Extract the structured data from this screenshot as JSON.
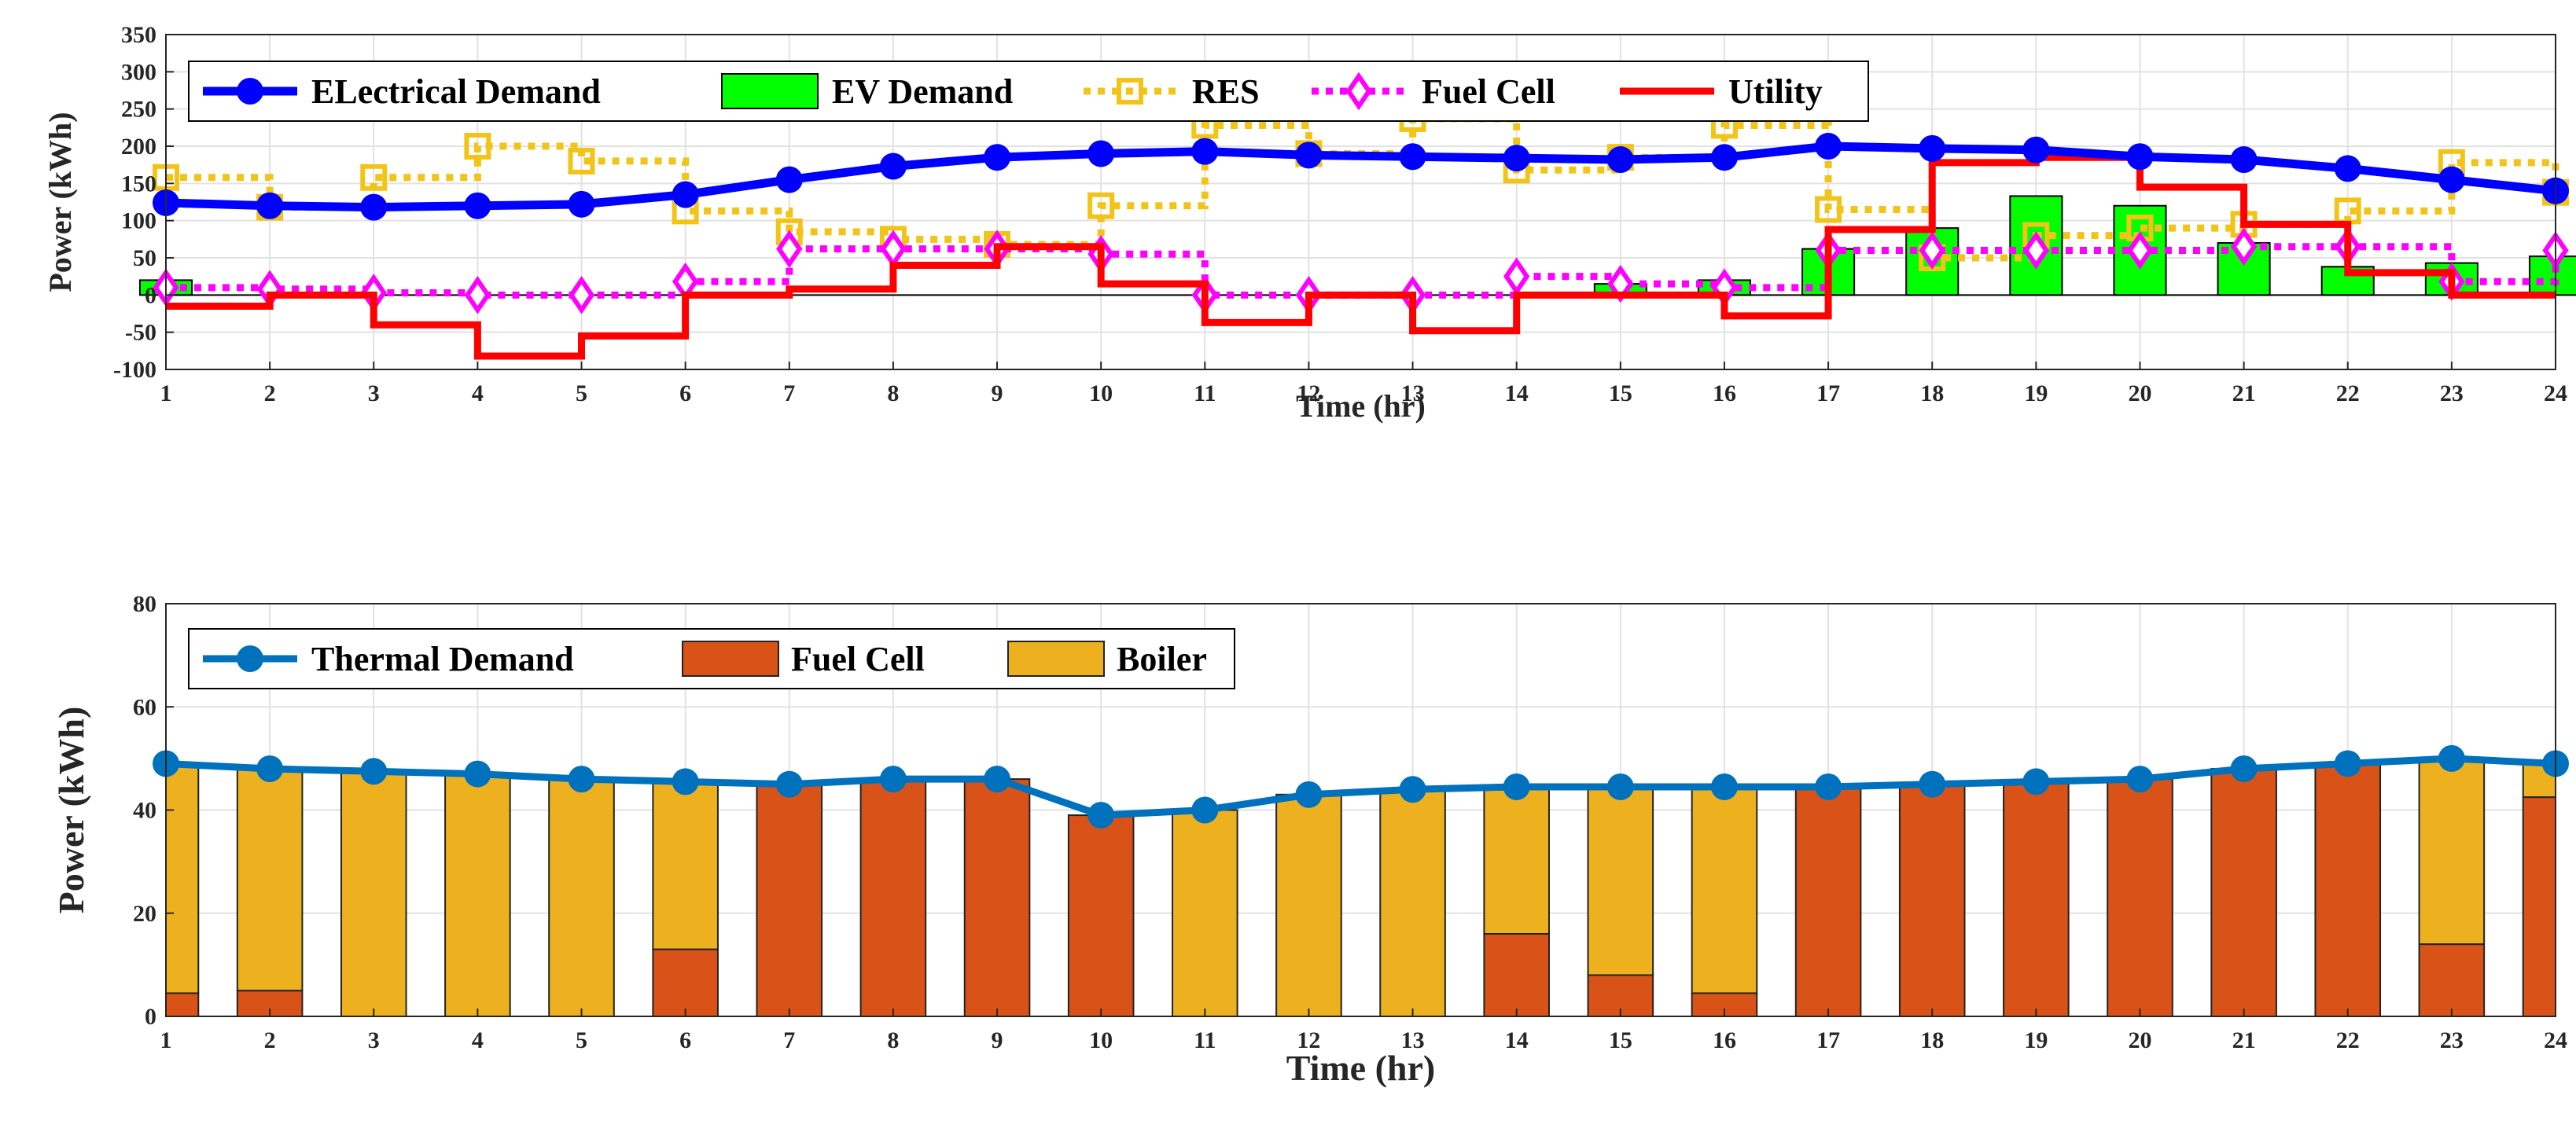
{
  "chart_data": [
    {
      "type": "line",
      "xlabel": "Time (hr)",
      "ylabel": "Power (kWh)",
      "xlim": [
        1,
        24
      ],
      "ylim": [
        -100,
        350
      ],
      "x_ticks": [
        1,
        2,
        3,
        4,
        5,
        6,
        7,
        8,
        9,
        10,
        11,
        12,
        13,
        14,
        15,
        16,
        17,
        18,
        19,
        20,
        21,
        22,
        23,
        24
      ],
      "y_ticks": [
        -100,
        -50,
        0,
        50,
        100,
        150,
        200,
        250,
        300,
        350
      ],
      "grid": true,
      "legend": "top",
      "x": [
        1,
        2,
        3,
        4,
        5,
        6,
        7,
        8,
        9,
        10,
        11,
        12,
        13,
        14,
        15,
        16,
        17,
        18,
        19,
        20,
        21,
        22,
        23,
        24
      ],
      "series": [
        {
          "name": "ELectrical Demand",
          "kind": "line",
          "color": "#0000ff",
          "values": [
            124,
            120,
            118,
            120,
            122,
            135,
            155,
            173,
            185,
            190,
            193,
            188,
            186,
            184,
            182,
            185,
            200,
            197,
            195,
            186,
            182,
            170,
            155,
            140
          ]
        },
        {
          "name": "EV Demand",
          "kind": "bar",
          "color": "#00ff00",
          "values": [
            20,
            0,
            0,
            0,
            0,
            0,
            0,
            0,
            0,
            0,
            0,
            0,
            0,
            0,
            15,
            20,
            62,
            90,
            133,
            120,
            70,
            38,
            43,
            52
          ]
        },
        {
          "name": "RES",
          "kind": "dotted-step",
          "color": "#f2c417",
          "values": [
            158,
            118,
            158,
            200,
            180,
            113,
            85,
            75,
            68,
            120,
            228,
            190,
            237,
            168,
            185,
            228,
            115,
            50,
            80,
            90,
            95,
            113,
            178,
            138
          ]
        },
        {
          "name": "Fuel Cell",
          "kind": "dotted-step",
          "color": "#ff00ff",
          "values": [
            10,
            8,
            3,
            0,
            0,
            18,
            62,
            62,
            62,
            55,
            0,
            0,
            0,
            25,
            15,
            10,
            60,
            60,
            60,
            60,
            65,
            65,
            18,
            60
          ]
        },
        {
          "name": "Utility",
          "kind": "step",
          "color": "#ff0000",
          "values": [
            -15,
            0,
            -40,
            -82,
            -55,
            0,
            8,
            40,
            65,
            15,
            -37,
            0,
            -48,
            0,
            0,
            -28,
            88,
            178,
            185,
            145,
            95,
            30,
            0,
            0
          ]
        }
      ]
    },
    {
      "type": "bar",
      "stacked": true,
      "xlabel": "Time (hr)",
      "ylabel": "Power (kWh)",
      "xlim": [
        1,
        24
      ],
      "ylim": [
        0,
        80
      ],
      "x_ticks": [
        1,
        2,
        3,
        4,
        5,
        6,
        7,
        8,
        9,
        10,
        11,
        12,
        13,
        14,
        15,
        16,
        17,
        18,
        19,
        20,
        21,
        22,
        23,
        24
      ],
      "y_ticks": [
        0,
        20,
        40,
        60,
        80
      ],
      "grid": true,
      "legend": "top-left",
      "x": [
        1,
        2,
        3,
        4,
        5,
        6,
        7,
        8,
        9,
        10,
        11,
        12,
        13,
        14,
        15,
        16,
        17,
        18,
        19,
        20,
        21,
        22,
        23,
        24
      ],
      "series": [
        {
          "name": "Thermal Demand",
          "kind": "line",
          "color": "#0072bd",
          "values": [
            49,
            48,
            47.5,
            47,
            46,
            45.5,
            45,
            46,
            46,
            39,
            40,
            43,
            44,
            44.5,
            44.5,
            44.5,
            44.5,
            45,
            45.5,
            46,
            48,
            49,
            50,
            49
          ]
        },
        {
          "name": "Fuel Cell",
          "kind": "bar",
          "color": "#d95319",
          "values": [
            4.5,
            5,
            0,
            0,
            0,
            13,
            45,
            46,
            46,
            39,
            0,
            0,
            0,
            16,
            8,
            4.5,
            44.5,
            45,
            45.5,
            46,
            48,
            49,
            14,
            42.5
          ]
        },
        {
          "name": "Boiler",
          "kind": "bar",
          "color": "#edb120",
          "values": [
            44.5,
            43,
            47.5,
            47,
            46,
            32.5,
            0,
            0,
            0,
            0,
            40,
            43,
            44,
            28.5,
            36.5,
            40,
            0,
            0,
            0,
            0,
            0,
            0,
            36,
            6.5
          ]
        }
      ]
    }
  ]
}
